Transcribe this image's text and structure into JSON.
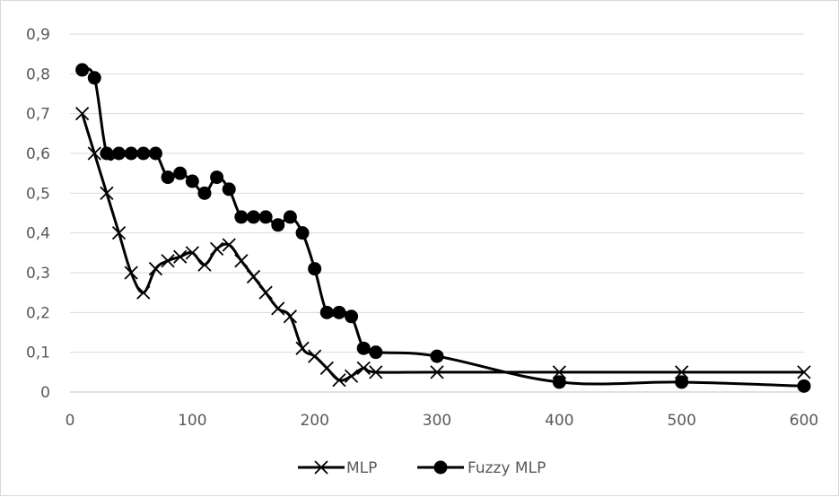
{
  "chart_data": {
    "type": "line",
    "title": "",
    "xlabel": "",
    "ylabel": "",
    "xlim": [
      0,
      600
    ],
    "ylim": [
      0,
      0.9
    ],
    "x_ticks": [
      0,
      100,
      200,
      300,
      400,
      500,
      600
    ],
    "x_tick_labels": [
      "0",
      "100",
      "200",
      "300",
      "400",
      "500",
      "600"
    ],
    "y_ticks": [
      0,
      0.1,
      0.2,
      0.3,
      0.4,
      0.5,
      0.6,
      0.7,
      0.8,
      0.9
    ],
    "y_tick_labels": [
      "0",
      "0,1",
      "0,2",
      "0,3",
      "0,4",
      "0,5",
      "0,6",
      "0,7",
      "0,8",
      "0,9"
    ],
    "grid": true,
    "legend_position": "bottom",
    "series": [
      {
        "name": "MLP",
        "marker": "x",
        "color": "#000000",
        "x": [
          10,
          20,
          30,
          40,
          50,
          60,
          70,
          80,
          90,
          100,
          110,
          120,
          130,
          140,
          150,
          160,
          170,
          180,
          190,
          200,
          210,
          220,
          230,
          240,
          250,
          300,
          400,
          500,
          600
        ],
        "y": [
          0.7,
          0.6,
          0.5,
          0.4,
          0.3,
          0.25,
          0.31,
          0.33,
          0.34,
          0.35,
          0.32,
          0.36,
          0.37,
          0.33,
          0.29,
          0.25,
          0.21,
          0.19,
          0.11,
          0.09,
          0.06,
          0.03,
          0.04,
          0.06,
          0.05,
          0.05,
          0.05,
          0.05,
          0.05
        ]
      },
      {
        "name": "Fuzzy MLP",
        "marker": "circle",
        "color": "#000000",
        "x": [
          10,
          20,
          30,
          40,
          50,
          60,
          70,
          80,
          90,
          100,
          110,
          120,
          130,
          140,
          150,
          160,
          170,
          180,
          190,
          200,
          210,
          220,
          230,
          240,
          250,
          300,
          400,
          500,
          600
        ],
        "y": [
          0.81,
          0.79,
          0.6,
          0.6,
          0.6,
          0.6,
          0.6,
          0.54,
          0.55,
          0.53,
          0.5,
          0.54,
          0.51,
          0.44,
          0.44,
          0.44,
          0.42,
          0.44,
          0.4,
          0.31,
          0.2,
          0.2,
          0.19,
          0.11,
          0.1,
          0.09,
          0.025,
          0.025,
          0.015
        ]
      }
    ]
  }
}
